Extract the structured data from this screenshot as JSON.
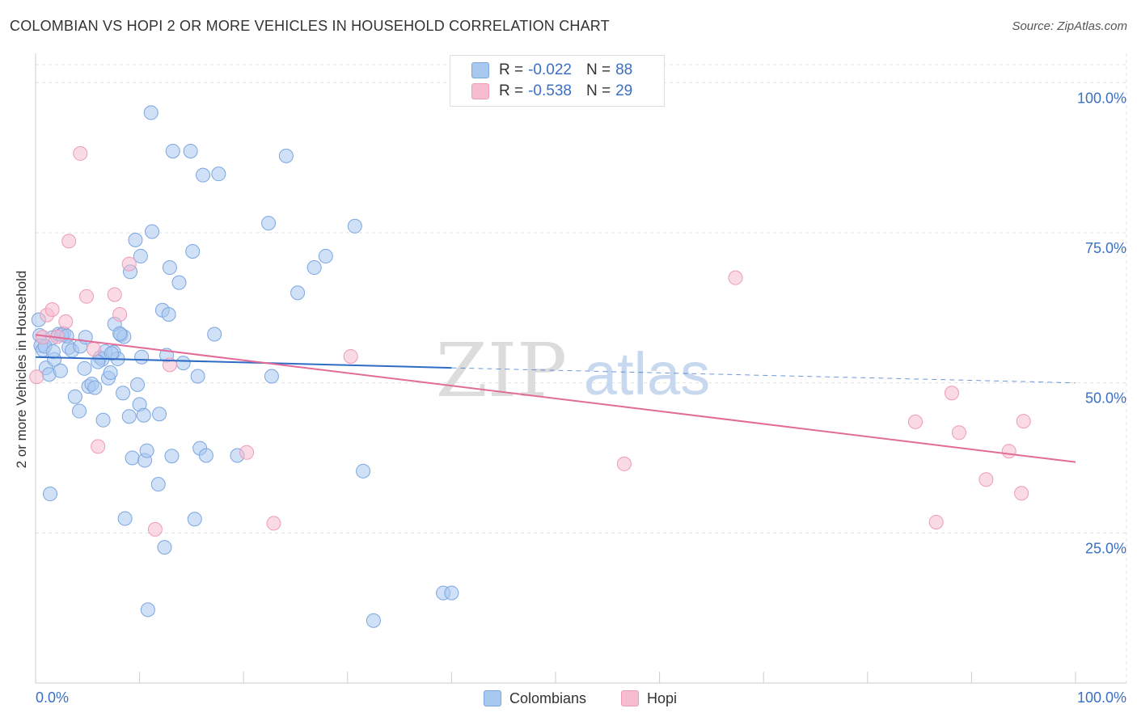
{
  "title": "COLOMBIAN VS HOPI 2 OR MORE VEHICLES IN HOUSEHOLD CORRELATION CHART",
  "source": "Source: ZipAtlas.com",
  "watermark": {
    "zip": "ZIP",
    "atlas": "atlas"
  },
  "colors": {
    "colombians_fill": "#a9c8f0",
    "colombians_stroke": "#7aa6e0",
    "colombians_line": "#2f6cc6",
    "hopi_fill": "#f6bcd0",
    "hopi_stroke": "#ee9ab8",
    "hopi_line": "#e26b98",
    "tick_text": "#3a6fc4",
    "grid": "#e2e2e2"
  },
  "legend": {
    "r_label": "R =",
    "n_label": "N =",
    "items": [
      {
        "name": "Colombians",
        "r": "-0.022",
        "n": "88"
      },
      {
        "name": "Hopi",
        "r": "-0.538",
        "n": "29"
      }
    ]
  },
  "chart_data": {
    "type": "scatter",
    "title": "COLOMBIAN VS HOPI 2 OR MORE VEHICLES IN HOUSEHOLD CORRELATION CHART",
    "xlabel": "",
    "ylabel": "2 or more Vehicles in Household",
    "xlim": [
      0,
      100
    ],
    "ylim": [
      0,
      103
    ],
    "x_tick_labels": [
      "0.0%",
      "100.0%"
    ],
    "y_ticks": [
      25,
      50,
      75,
      100
    ],
    "y_tick_labels": [
      "25.0%",
      "50.0%",
      "75.0%",
      "100.0%"
    ],
    "grid": true,
    "legend_position": "top-center",
    "series": [
      {
        "name": "Colombians",
        "points": [
          [
            0.4,
            57.9
          ],
          [
            0.5,
            56.2
          ],
          [
            0.7,
            55.5
          ],
          [
            1.0,
            52.5
          ],
          [
            1.3,
            51.4
          ],
          [
            1.4,
            31.5
          ],
          [
            1.6,
            57.5
          ],
          [
            1.8,
            53.9
          ],
          [
            2.2,
            58.1
          ],
          [
            2.4,
            52.0
          ],
          [
            2.7,
            58.2
          ],
          [
            3.2,
            55.9
          ],
          [
            3.5,
            55.4
          ],
          [
            3.8,
            47.7
          ],
          [
            4.2,
            45.3
          ],
          [
            4.3,
            56.1
          ],
          [
            4.7,
            52.4
          ],
          [
            4.8,
            57.6
          ],
          [
            5.1,
            49.4
          ],
          [
            5.4,
            49.8
          ],
          [
            5.7,
            49.2
          ],
          [
            6.2,
            54.2
          ],
          [
            6.4,
            53.9
          ],
          [
            6.5,
            43.8
          ],
          [
            6.7,
            55.2
          ],
          [
            7.0,
            50.8
          ],
          [
            7.2,
            51.7
          ],
          [
            7.5,
            55.1
          ],
          [
            7.6,
            59.8
          ],
          [
            7.9,
            54.0
          ],
          [
            8.2,
            58.0
          ],
          [
            8.4,
            48.3
          ],
          [
            8.5,
            57.7
          ],
          [
            8.6,
            27.4
          ],
          [
            9.0,
            44.4
          ],
          [
            9.1,
            68.5
          ],
          [
            9.3,
            37.5
          ],
          [
            9.6,
            73.8
          ],
          [
            9.8,
            49.7
          ],
          [
            10.0,
            46.4
          ],
          [
            10.1,
            71.1
          ],
          [
            10.4,
            44.6
          ],
          [
            10.5,
            37.1
          ],
          [
            10.7,
            38.7
          ],
          [
            10.8,
            12.2
          ],
          [
            11.1,
            95.0
          ],
          [
            11.2,
            75.2
          ],
          [
            11.8,
            33.1
          ],
          [
            11.9,
            44.8
          ],
          [
            12.2,
            62.1
          ],
          [
            12.4,
            22.6
          ],
          [
            12.6,
            54.6
          ],
          [
            12.8,
            61.4
          ],
          [
            12.9,
            69.2
          ],
          [
            13.1,
            37.8
          ],
          [
            13.2,
            88.6
          ],
          [
            13.8,
            66.7
          ],
          [
            14.2,
            53.3
          ],
          [
            14.9,
            88.6
          ],
          [
            15.1,
            71.9
          ],
          [
            15.3,
            27.3
          ],
          [
            15.6,
            51.1
          ],
          [
            15.8,
            39.1
          ],
          [
            16.1,
            84.6
          ],
          [
            16.4,
            37.9
          ],
          [
            17.2,
            58.1
          ],
          [
            17.6,
            84.8
          ],
          [
            19.4,
            37.9
          ],
          [
            22.4,
            76.6
          ],
          [
            22.7,
            51.1
          ],
          [
            24.1,
            87.8
          ],
          [
            25.2,
            65.0
          ],
          [
            26.8,
            69.2
          ],
          [
            27.9,
            71.1
          ],
          [
            30.7,
            76.1
          ],
          [
            31.5,
            35.3
          ],
          [
            32.5,
            10.4
          ],
          [
            39.2,
            15.0
          ],
          [
            40.0,
            15.0
          ],
          [
            0.3,
            60.5
          ],
          [
            0.9,
            56.1
          ],
          [
            1.7,
            55.2
          ],
          [
            2.5,
            58.0
          ],
          [
            3.0,
            57.8
          ],
          [
            6.0,
            53.5
          ],
          [
            7.3,
            54.9
          ],
          [
            8.1,
            58.2
          ],
          [
            10.2,
            54.3
          ]
        ],
        "trend": {
          "x": [
            0,
            40
          ],
          "y": [
            54.3,
            52.5
          ]
        },
        "trend_extension": {
          "x": [
            40,
            100
          ],
          "y": [
            52.5,
            50.0
          ]
        }
      },
      {
        "name": "Hopi",
        "points": [
          [
            0.1,
            51.0
          ],
          [
            0.7,
            57.6
          ],
          [
            1.1,
            61.3
          ],
          [
            1.6,
            62.2
          ],
          [
            2.1,
            57.7
          ],
          [
            2.9,
            60.2
          ],
          [
            3.2,
            73.6
          ],
          [
            4.3,
            88.2
          ],
          [
            4.9,
            64.4
          ],
          [
            5.6,
            55.6
          ],
          [
            6.0,
            39.4
          ],
          [
            7.6,
            64.7
          ],
          [
            8.1,
            61.4
          ],
          [
            9.0,
            69.8
          ],
          [
            11.5,
            25.6
          ],
          [
            12.9,
            53.0
          ],
          [
            20.3,
            38.4
          ],
          [
            22.9,
            26.6
          ],
          [
            30.3,
            54.4
          ],
          [
            56.6,
            36.5
          ],
          [
            67.3,
            67.5
          ],
          [
            84.6,
            43.5
          ],
          [
            86.6,
            26.8
          ],
          [
            88.1,
            48.3
          ],
          [
            88.8,
            41.7
          ],
          [
            91.4,
            33.9
          ],
          [
            93.6,
            38.6
          ],
          [
            94.8,
            31.6
          ],
          [
            95.0,
            43.6
          ]
        ],
        "trend": {
          "x": [
            0,
            100
          ],
          "y": [
            58.0,
            36.8
          ]
        }
      }
    ]
  }
}
